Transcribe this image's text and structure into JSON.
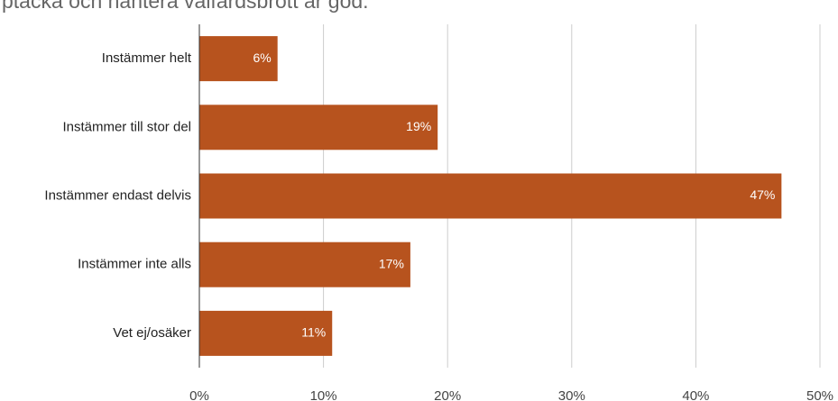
{
  "chart_data": {
    "type": "bar",
    "orientation": "horizontal",
    "title": "ptäcka och hantera välfärdsbrott är god.",
    "categories": [
      "Instämmer helt",
      "Instämmer till stor del",
      "Instämmer endast delvis",
      "Instämmer inte alls",
      "Vet ej/osäker"
    ],
    "values": [
      6.3,
      19.2,
      46.9,
      17,
      10.7
    ],
    "value_labels": [
      "6%",
      "19%",
      "47%",
      "17%",
      "11%"
    ],
    "color": "#b7531e",
    "xlim": [
      0,
      50
    ],
    "xticks": [
      {
        "value": 0,
        "label": "0%"
      },
      {
        "value": 10,
        "label": "10%"
      },
      {
        "value": 20,
        "label": "20%"
      },
      {
        "value": 30,
        "label": "30%"
      },
      {
        "value": 40,
        "label": "40%"
      },
      {
        "value": 50,
        "label": "50%"
      }
    ],
    "grid": true
  }
}
